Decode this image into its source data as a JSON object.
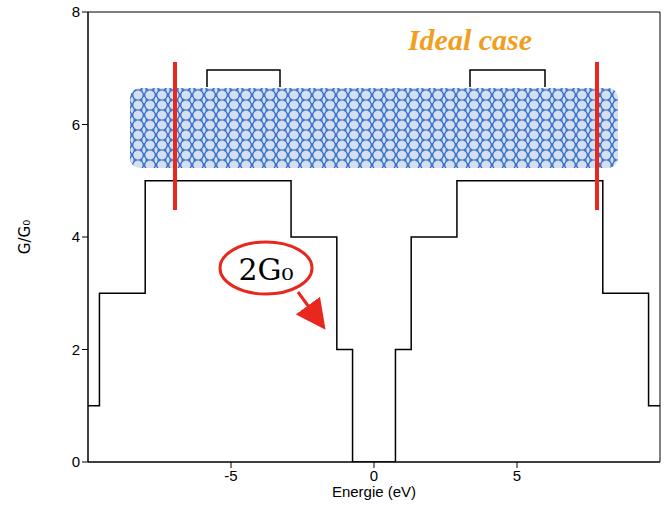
{
  "chart_data": {
    "type": "line",
    "title": "Ideal case",
    "x_label": "Energie (eV)",
    "y_label": "G/G₀",
    "x": [
      -10,
      -9.6,
      -8,
      -2.9,
      -1.3,
      -0.75,
      0.75,
      1.3,
      2.9,
      8,
      9.6,
      10
    ],
    "values": [
      1,
      3,
      5,
      4,
      2,
      0,
      2,
      4,
      5,
      3,
      1,
      1
    ],
    "line_style": "step",
    "color": "#000000",
    "xlim": [
      -10,
      10
    ],
    "ylim": [
      0,
      8
    ],
    "xticks": [
      -5,
      0,
      5
    ],
    "yticks": [
      0,
      2,
      4,
      6,
      8
    ],
    "annotations": [
      "2G₀"
    ]
  }
}
